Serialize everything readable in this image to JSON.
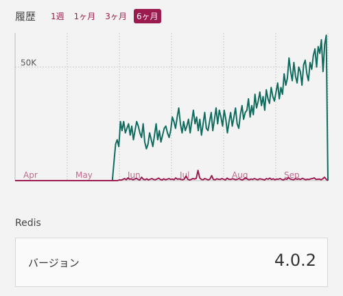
{
  "history": {
    "title": "履歴",
    "tabs": [
      {
        "label": "1週",
        "active": false
      },
      {
        "label": "1ヶ月",
        "active": false
      },
      {
        "label": "3ヶ月",
        "active": false
      },
      {
        "label": "6ヶ月",
        "active": true
      }
    ]
  },
  "chart_data": {
    "type": "line",
    "y_tick_labels": [
      "50K"
    ],
    "y_ticks": [
      50000
    ],
    "ylim": [
      0,
      65000
    ],
    "x_labels": [
      "Apr",
      "May",
      "Jun",
      "Jul",
      "Aug",
      "Sep"
    ],
    "grid": true,
    "series": [
      {
        "color": "#0f6b5e",
        "values": [
          0,
          0,
          0,
          0,
          0,
          0,
          0,
          0,
          0,
          0,
          0,
          0,
          0,
          0,
          0,
          0,
          0,
          0,
          0,
          0,
          0,
          0,
          0,
          0,
          0,
          0,
          0,
          0,
          0,
          0,
          0,
          0,
          0,
          0,
          0,
          0,
          0,
          0,
          0,
          0,
          0,
          0,
          0,
          0,
          0,
          0,
          0,
          0,
          0,
          0,
          0,
          0,
          0,
          0,
          0,
          0,
          0,
          0,
          0,
          0,
          0,
          8000,
          16000,
          18000,
          15000,
          26000,
          22000,
          26000,
          21000,
          23000,
          25000,
          20000,
          24000,
          18000,
          22000,
          26000,
          24000,
          21000,
          19000,
          25000,
          17000,
          14000,
          16000,
          21000,
          18000,
          15000,
          20000,
          25000,
          18000,
          22000,
          17000,
          20000,
          23000,
          24000,
          21000,
          19000,
          22000,
          28000,
          26000,
          23000,
          28000,
          32000,
          25000,
          21000,
          26000,
          22000,
          24000,
          27000,
          21000,
          26000,
          31000,
          25000,
          28000,
          22000,
          27000,
          20000,
          25000,
          30000,
          23000,
          22000,
          26000,
          30000,
          22000,
          27000,
          32000,
          25000,
          31000,
          28000,
          24000,
          31000,
          27000,
          21000,
          26000,
          30000,
          24000,
          28000,
          32000,
          25000,
          23000,
          29000,
          33000,
          27000,
          30000,
          31000,
          36000,
          28000,
          33000,
          29000,
          38000,
          32000,
          35000,
          39000,
          33000,
          37000,
          31000,
          40000,
          36000,
          34000,
          41000,
          37000,
          35000,
          39000,
          43000,
          36000,
          41000,
          38000,
          47000,
          42000,
          45000,
          54000,
          48000,
          44000,
          52000,
          46000,
          43000,
          50000,
          48000,
          42000,
          51000,
          53000,
          47000,
          44000,
          52000,
          49000,
          55000,
          58000,
          50000,
          59000,
          56000,
          62000,
          48000,
          60000,
          64000,
          0
        ],
        "name": ""
      },
      {
        "color": "#9b1b4f",
        "values": [
          0,
          0,
          0,
          0,
          0,
          0,
          0,
          0,
          0,
          0,
          0,
          0,
          0,
          0,
          0,
          0,
          0,
          0,
          0,
          0,
          0,
          0,
          0,
          0,
          0,
          0,
          0,
          0,
          0,
          0,
          0,
          0,
          0,
          0,
          0,
          0,
          0,
          0,
          0,
          0,
          0,
          0,
          0,
          0,
          0,
          0,
          0,
          0,
          0,
          0,
          0,
          0,
          0,
          0,
          0,
          0,
          0,
          0,
          0,
          0,
          0,
          300,
          200,
          500,
          900,
          400,
          1200,
          600,
          800,
          400,
          700,
          1000,
          500,
          300,
          1500,
          600,
          400,
          800,
          300,
          600,
          900,
          500,
          400,
          700,
          1100,
          500,
          300,
          800,
          400,
          600,
          900,
          500,
          700,
          400,
          1200,
          600,
          800,
          500,
          400,
          700,
          2000,
          600,
          300,
          500,
          900,
          700,
          1000,
          4500,
          1200,
          500,
          400,
          900,
          600,
          300,
          700,
          2200,
          500,
          400,
          800,
          600,
          500,
          900,
          600,
          300,
          1100,
          600,
          500,
          800,
          700,
          400,
          600,
          900,
          500,
          300,
          800,
          1200,
          600,
          400,
          700,
          500,
          900,
          600,
          400,
          800,
          700,
          500,
          300,
          900,
          600,
          1100,
          500,
          800,
          400,
          700,
          600,
          900,
          500,
          300,
          800,
          600,
          1300,
          700,
          500,
          400,
          900,
          600,
          800,
          500,
          1000,
          700,
          400,
          600,
          500,
          800,
          900,
          1200,
          500,
          600,
          700,
          400,
          800,
          1500,
          600,
          0
        ],
        "name": ""
      }
    ]
  },
  "section": {
    "title": "Redis"
  },
  "info": {
    "label": "バージョン",
    "value": "4.0.2"
  }
}
